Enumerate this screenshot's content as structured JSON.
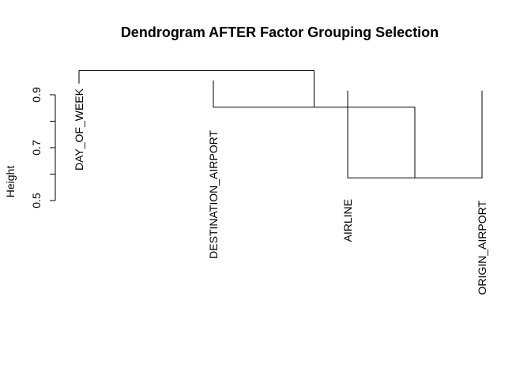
{
  "chart_data": {
    "type": "dendrogram",
    "title": "Dendrogram AFTER Factor Grouping Selection",
    "xlabel": "",
    "ylabel": "Height",
    "ylim": [
      0.5,
      0.95
    ],
    "y_ticks": [
      0.5,
      0.7,
      0.9
    ],
    "y_tick_labels": [
      "0.5",
      "0.7",
      "0.9"
    ],
    "leaves": [
      "DAY_OF_WEEK",
      "DESTINATION_AIRPORT",
      "AIRLINE",
      "ORIGIN_AIRPORT"
    ],
    "merges": [
      {
        "height": 0.586,
        "left_leaf": 2,
        "right_leaf": 3
      },
      {
        "height": 0.853,
        "left_leaf": 1,
        "right_merge": 0
      },
      {
        "height": 0.991,
        "left_leaf": 0,
        "right_merge": 1
      }
    ],
    "leaf_label_height": 0.951,
    "grid": false,
    "legend": "none"
  }
}
